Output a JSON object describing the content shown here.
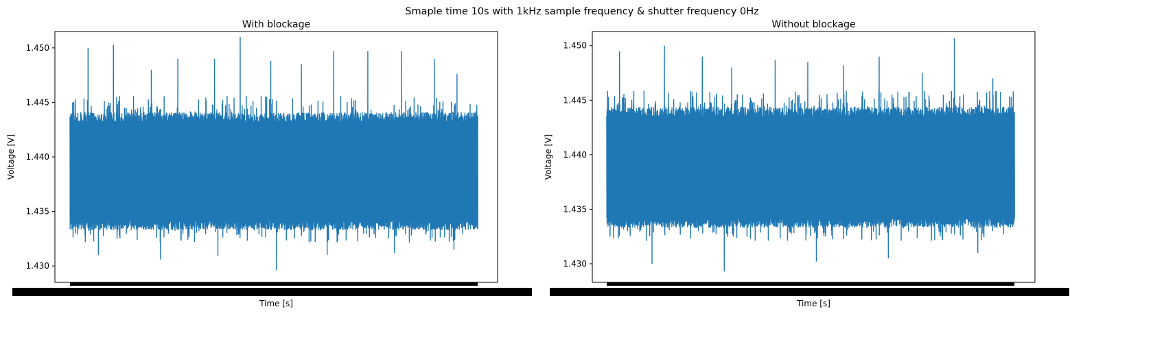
{
  "figure": {
    "suptitle": "Smaple time 10s with 1kHz sample frequency & shutter frequency 0Hz"
  },
  "colors": {
    "series": "#1f77b4",
    "axes": "#000000",
    "background": "#ffffff"
  },
  "chart_data": [
    {
      "type": "line",
      "title": "With blockage",
      "xlabel": "Time [s]",
      "ylabel": "Voltage [V]",
      "ylim": [
        1.4285,
        1.4515
      ],
      "yticks": [
        1.43,
        1.435,
        1.44,
        1.445,
        1.45
      ],
      "ytick_labels": [
        "1.430",
        "1.435",
        "1.440",
        "1.445",
        "1.450"
      ],
      "xtick_labels_note": "overlapping dense tick labels (illegible)",
      "grid": false,
      "legend": "none",
      "series": [
        {
          "samples": 10000,
          "band_low": 1.4333,
          "band_high": 1.4441,
          "mean": 1.4386,
          "min": 1.4296,
          "max": 1.451,
          "spikes_high": [
            1.45,
            1.4503,
            1.448,
            1.449,
            1.449,
            1.451,
            1.4488,
            1.4485,
            1.4497,
            1.4497,
            1.4497,
            1.449,
            1.4476
          ],
          "spikes_low": [
            1.431,
            1.4306,
            1.4309,
            1.4296,
            1.431,
            1.4312,
            1.4315
          ]
        }
      ]
    },
    {
      "type": "line",
      "title": "Without blockage",
      "xlabel": "Time [s]",
      "ylabel": "Voltage [V]",
      "ylim": [
        1.4283,
        1.4513
      ],
      "yticks": [
        1.43,
        1.435,
        1.44,
        1.445,
        1.45
      ],
      "ytick_labels": [
        "1.430",
        "1.435",
        "1.440",
        "1.445",
        "1.450"
      ],
      "xtick_labels_note": "overlapping dense tick labels (illegible)",
      "grid": false,
      "legend": "none",
      "series": [
        {
          "samples": 10000,
          "band_low": 1.4333,
          "band_high": 1.4444,
          "mean": 1.4388,
          "min": 1.4293,
          "max": 1.4507,
          "spikes_high": [
            1.4495,
            1.45,
            1.449,
            1.448,
            1.4487,
            1.4485,
            1.4482,
            1.449,
            1.4475,
            1.4507,
            1.447
          ],
          "spikes_low": [
            1.43,
            1.4293,
            1.4302,
            1.4305,
            1.431
          ]
        }
      ]
    }
  ]
}
